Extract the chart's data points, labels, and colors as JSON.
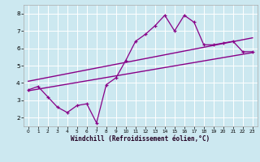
{
  "xlabel": "Windchill (Refroidissement éolien,°C)",
  "bg_color": "#cce8f0",
  "line_color": "#880088",
  "x_data": [
    0,
    1,
    2,
    3,
    4,
    5,
    6,
    7,
    8,
    9,
    10,
    11,
    12,
    13,
    14,
    15,
    16,
    17,
    18,
    19,
    20,
    21,
    22,
    23
  ],
  "y_data": [
    3.6,
    3.8,
    3.2,
    2.6,
    2.3,
    2.7,
    2.8,
    1.7,
    3.9,
    4.3,
    5.3,
    6.4,
    6.8,
    7.3,
    7.9,
    7.0,
    7.9,
    7.5,
    6.2,
    6.2,
    6.3,
    6.4,
    5.8,
    5.8
  ],
  "line1_x": [
    0,
    23
  ],
  "line1_y": [
    3.55,
    5.75
  ],
  "line2_x": [
    0,
    23
  ],
  "line2_y": [
    4.1,
    6.6
  ],
  "xlim": [
    -0.5,
    23.5
  ],
  "ylim": [
    1.5,
    8.5
  ],
  "xticks": [
    0,
    1,
    2,
    3,
    4,
    5,
    6,
    7,
    8,
    9,
    10,
    11,
    12,
    13,
    14,
    15,
    16,
    17,
    18,
    19,
    20,
    21,
    22,
    23
  ],
  "yticks": [
    2,
    3,
    4,
    5,
    6,
    7,
    8
  ],
  "grid_color": "#ffffff",
  "tick_fontsize": 5.0,
  "xlabel_fontsize": 5.5
}
